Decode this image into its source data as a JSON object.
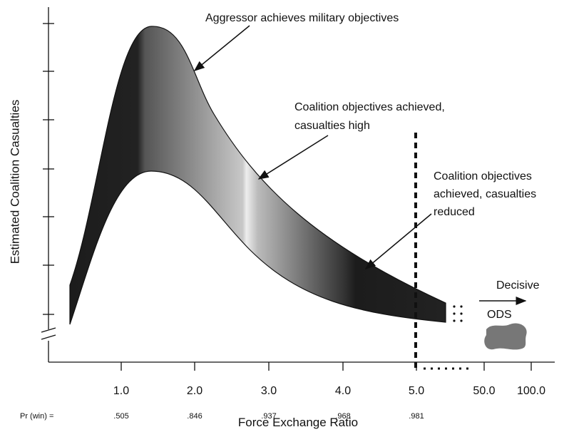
{
  "y_axis_label": "Estimated Coalition Casualties",
  "x_axis_label": "Force Exchange Ratio",
  "x_ticks": [
    "1.0",
    "2.0",
    "3.0",
    "4.0",
    "5.0",
    "50.0",
    "100.0"
  ],
  "pr_label": "Pr (win) =",
  "pr_values": [
    ".505",
    ".846",
    ".937",
    ".968",
    ".981"
  ],
  "annotations": [
    {
      "lines": [
        "Aggressor achieves military objectives"
      ]
    },
    {
      "lines": [
        "Coalition objectives achieved,",
        "casualties high"
      ]
    },
    {
      "lines": [
        "Coalition objectives",
        "achieved, casualties",
        "reduced"
      ]
    }
  ],
  "decisive": "Decisive",
  "ods": "ODS"
}
